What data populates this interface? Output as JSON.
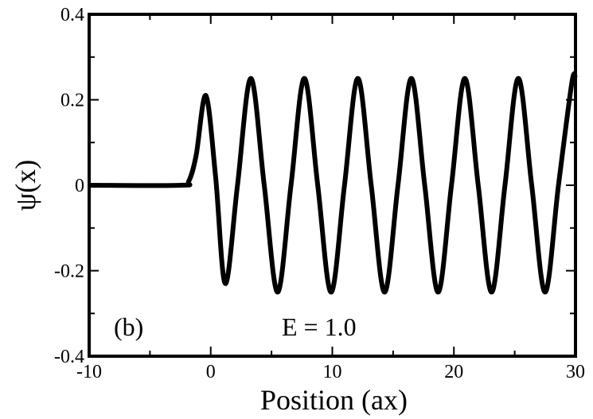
{
  "chart_data": {
    "type": "line",
    "xlabel": "Position (ax)",
    "ylabel": "ψ(x)",
    "xlim": [
      -10,
      30
    ],
    "ylim": [
      -0.4,
      0.4
    ],
    "xticks": [
      -10,
      0,
      10,
      20,
      30
    ],
    "xtick_labels": [
      "-10",
      "0",
      "10",
      "20",
      "30"
    ],
    "yticks": [
      -0.4,
      -0.2,
      0,
      0.2,
      0.4
    ],
    "ytick_labels": [
      "-0.4",
      "-0.2",
      "0",
      "0.2",
      "0.4"
    ],
    "grid": false,
    "annotations": [
      "(b)",
      "E = 1.0"
    ],
    "series": [
      {
        "x": [
          -10,
          -2.5,
          -1.8,
          -1.2,
          -0.4,
          0.4,
          1.2,
          2.2,
          3.3,
          4.4,
          5.5,
          6.6,
          7.7,
          8.8,
          9.9,
          11.0,
          12.1,
          13.2,
          14.3,
          15.4,
          16.5,
          17.6,
          18.7,
          19.8,
          20.9,
          22.0,
          23.1,
          24.2,
          25.3,
          26.4,
          27.5,
          28.6,
          29.7,
          30
        ],
        "y": [
          0,
          0,
          0.01,
          0.07,
          0.21,
          0.02,
          -0.23,
          0.0,
          0.25,
          0.0,
          -0.25,
          0.0,
          0.25,
          0.0,
          -0.25,
          0.0,
          0.25,
          0.0,
          -0.25,
          0.0,
          0.25,
          0.0,
          -0.25,
          0.0,
          0.25,
          0.0,
          -0.25,
          0.0,
          0.25,
          0.0,
          -0.25,
          0.0,
          0.24,
          0.25
        ],
        "color": "#000000"
      }
    ]
  }
}
